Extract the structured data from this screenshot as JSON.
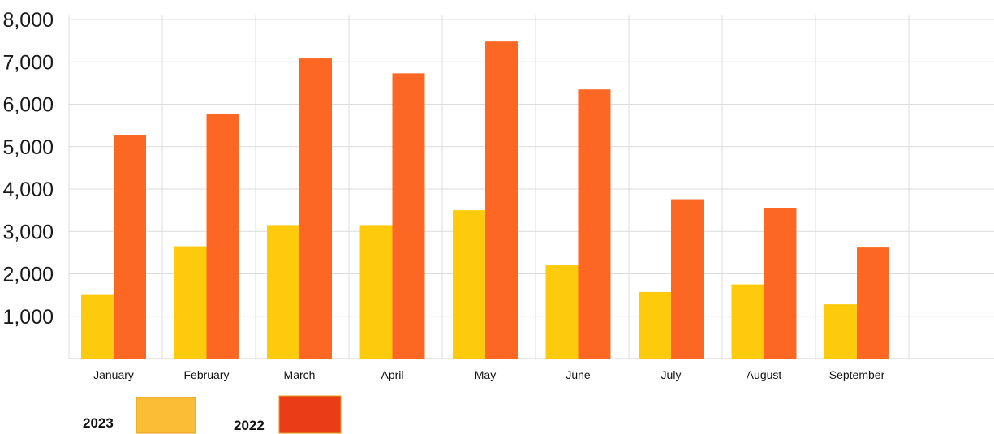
{
  "chart_data": {
    "type": "bar",
    "title": "",
    "xlabel": "",
    "ylabel": "",
    "ylim": [
      0,
      8000
    ],
    "yticks": [
      "1,000",
      "2,000",
      "3,000",
      "4,000",
      "5,000",
      "6,000",
      "7,000",
      "8,000"
    ],
    "grid": true,
    "legend_position": "bottom-left",
    "categories": [
      "January",
      "February",
      "March",
      "April",
      "May",
      "June",
      "July",
      "August",
      "September"
    ],
    "series": [
      {
        "name": "2023",
        "color": "#fdcb0c",
        "values": [
          1500,
          2650,
          3150,
          3150,
          3500,
          2200,
          1570,
          1750,
          1280
        ]
      },
      {
        "name": "2022",
        "color": "#fd6724",
        "values": [
          5270,
          5780,
          7080,
          6730,
          7480,
          6350,
          3760,
          3550,
          2620
        ]
      }
    ],
    "legend": [
      {
        "label": "2023",
        "swatch_color": "#fbbd35"
      },
      {
        "label": "2022",
        "swatch_color": "#ea3d17"
      }
    ]
  }
}
